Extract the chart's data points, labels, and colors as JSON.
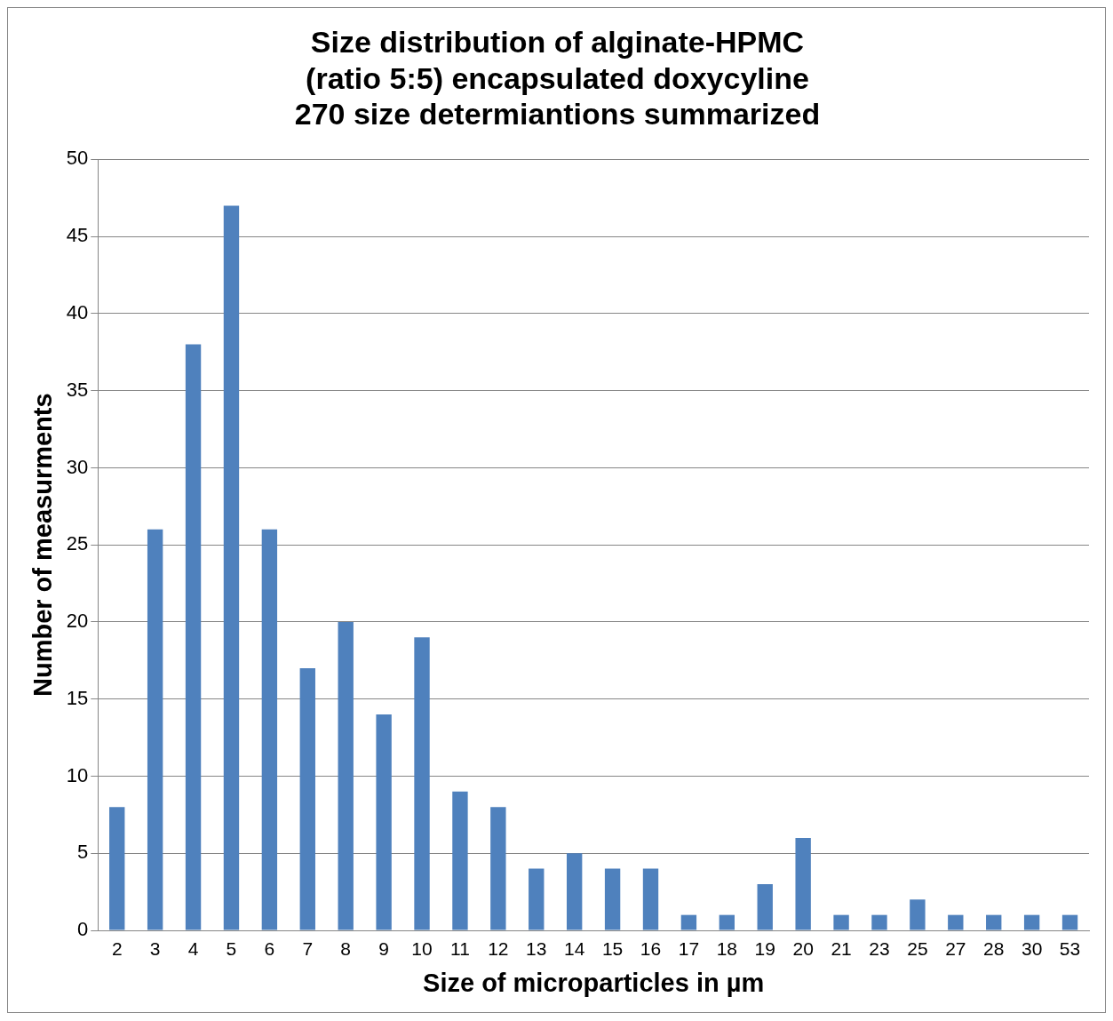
{
  "chart_data": {
    "type": "bar",
    "title": "Size distribution of alginate-HPMC\n(ratio 5:5) encapsulated doxycyline\n270 size determiantions summarized",
    "xlabel": "Size of microparticles in µm",
    "ylabel": "Number of measurments",
    "categories": [
      "2",
      "3",
      "4",
      "5",
      "6",
      "7",
      "8",
      "9",
      "10",
      "11",
      "12",
      "13",
      "14",
      "15",
      "16",
      "17",
      "18",
      "19",
      "20",
      "21",
      "23",
      "25",
      "27",
      "28",
      "30",
      "53"
    ],
    "values": [
      8,
      26,
      38,
      47,
      26,
      17,
      20,
      14,
      19,
      9,
      8,
      4,
      5,
      4,
      4,
      1,
      1,
      3,
      6,
      1,
      1,
      2,
      1,
      1,
      1,
      1
    ],
    "color": "#4f81bd",
    "ylim": [
      0,
      50
    ],
    "yticks": [
      0,
      5,
      10,
      15,
      20,
      25,
      30,
      35,
      40,
      45,
      50
    ],
    "grid": "y",
    "legend": false
  }
}
